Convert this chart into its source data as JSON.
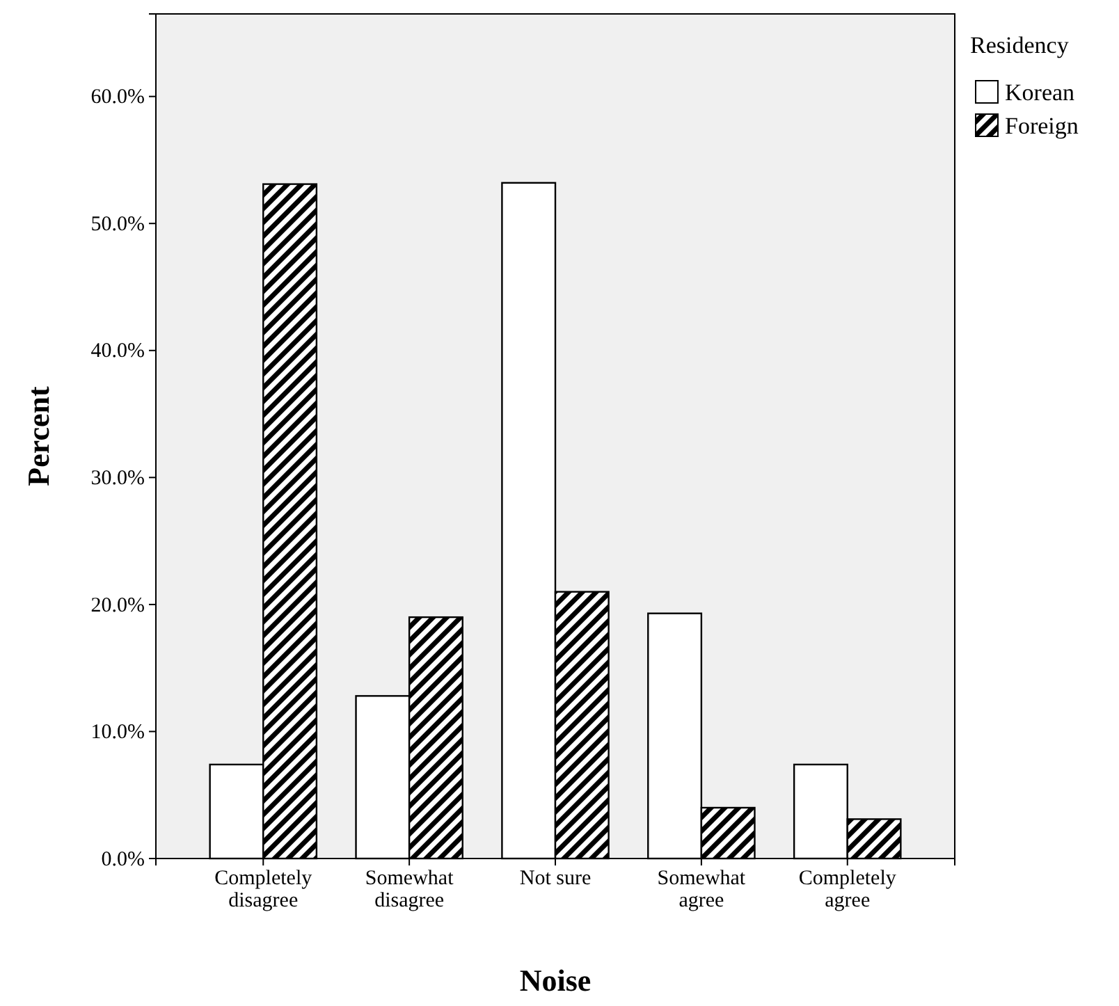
{
  "chart_data": {
    "type": "bar",
    "xlabel": "Noise",
    "ylabel": "Percent",
    "legend_title": "Residency",
    "legend": "right",
    "grid": false,
    "categories": [
      "Completely disagree",
      "Somewhat disagree",
      "Not sure",
      "Somewhat agree",
      "Completely agree"
    ],
    "series": [
      {
        "name": "Korean",
        "color": "#ffffff",
        "values": [
          7.4,
          12.8,
          53.2,
          19.3,
          7.4
        ]
      },
      {
        "name": "Foreign",
        "color": "#000000",
        "values": [
          53.1,
          19.0,
          21.0,
          4.0,
          3.1
        ]
      }
    ],
    "ylim": [
      0,
      66.5
    ],
    "yticks": [
      {
        "value": 0,
        "label": "0.0%"
      },
      {
        "value": 10,
        "label": "10.0%"
      },
      {
        "value": 20,
        "label": "20.0%"
      },
      {
        "value": 30,
        "label": "30.0%"
      },
      {
        "value": 40,
        "label": "40.0%"
      },
      {
        "value": 50,
        "label": "50.0%"
      },
      {
        "value": 60,
        "label": "60.0%"
      }
    ]
  }
}
